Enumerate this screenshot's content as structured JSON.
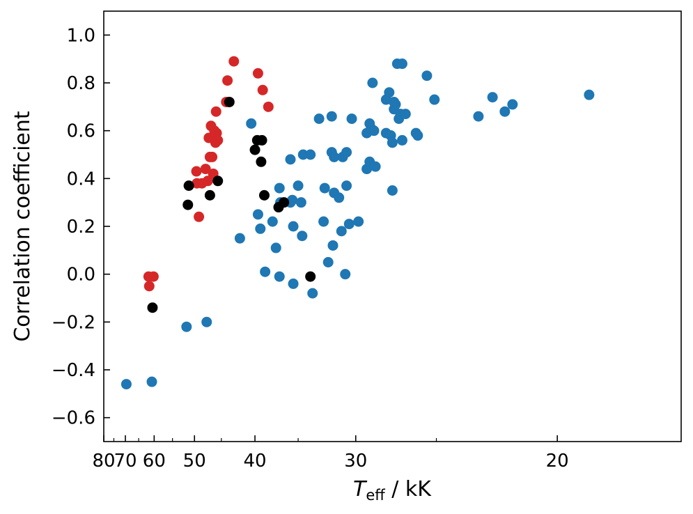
{
  "chart_data": {
    "type": "scatter",
    "title": "",
    "xlabel_symbol": "T",
    "xlabel_subscript": "eff",
    "xlabel_unit": "kK",
    "ylabel": "Correlation coefficient",
    "x_scale": "reciprocal",
    "xlim": [
      80,
      16.6
    ],
    "ylim": [
      -0.7,
      1.1
    ],
    "x_ticks": [
      80,
      70,
      60,
      50,
      40,
      30,
      20
    ],
    "x_tick_labels": [
      "80",
      "70",
      "60",
      "50",
      "40",
      "30",
      "20"
    ],
    "x_minor_ticks": [
      75,
      65,
      55,
      45,
      35,
      25
    ],
    "y_ticks": [
      -0.6,
      -0.4,
      -0.2,
      0.0,
      0.2,
      0.4,
      0.6,
      0.8,
      1.0
    ],
    "y_tick_labels": [
      "−0.6",
      "−0.4",
      "−0.2",
      "0.0",
      "0.2",
      "0.4",
      "0.6",
      "0.8",
      "1.0"
    ],
    "grid": false,
    "legend": "none",
    "series": [
      {
        "color": "#1f77b4",
        "points": [
          [
            69.6,
            -0.46
          ],
          [
            60.7,
            -0.45
          ],
          [
            51.7,
            -0.22
          ],
          [
            47.6,
            -0.2
          ],
          [
            42.1,
            0.15
          ],
          [
            40.5,
            0.63
          ],
          [
            39.6,
            0.25
          ],
          [
            39.3,
            0.19
          ],
          [
            38.7,
            0.01
          ],
          [
            37.8,
            0.22
          ],
          [
            37.4,
            0.11
          ],
          [
            37.0,
            0.36
          ],
          [
            37.0,
            -0.01
          ],
          [
            36.9,
            0.3
          ],
          [
            35.8,
            0.48
          ],
          [
            35.8,
            0.3
          ],
          [
            35.6,
            0.31
          ],
          [
            35.5,
            0.2
          ],
          [
            35.5,
            -0.04
          ],
          [
            35.0,
            0.37
          ],
          [
            34.7,
            0.3
          ],
          [
            34.6,
            0.16
          ],
          [
            34.5,
            0.5
          ],
          [
            33.8,
            0.5
          ],
          [
            33.6,
            -0.08
          ],
          [
            33.0,
            0.65
          ],
          [
            32.6,
            0.22
          ],
          [
            32.5,
            0.36
          ],
          [
            32.2,
            0.05
          ],
          [
            31.9,
            0.51
          ],
          [
            31.9,
            0.66
          ],
          [
            31.8,
            0.12
          ],
          [
            31.7,
            0.34
          ],
          [
            31.7,
            0.49
          ],
          [
            31.3,
            0.32
          ],
          [
            31.1,
            0.18
          ],
          [
            31.0,
            0.49
          ],
          [
            30.8,
            0.0
          ],
          [
            30.7,
            0.51
          ],
          [
            30.7,
            0.37
          ],
          [
            30.5,
            0.21
          ],
          [
            30.3,
            0.65
          ],
          [
            29.8,
            0.22
          ],
          [
            29.2,
            0.59
          ],
          [
            29.2,
            0.44
          ],
          [
            29.0,
            0.63
          ],
          [
            29.0,
            0.47
          ],
          [
            28.9,
            0.61
          ],
          [
            28.8,
            0.8
          ],
          [
            28.7,
            0.6
          ],
          [
            28.6,
            0.45
          ],
          [
            27.9,
            0.73
          ],
          [
            27.9,
            0.59
          ],
          [
            27.7,
            0.76
          ],
          [
            27.6,
            0.58
          ],
          [
            27.5,
            0.35
          ],
          [
            27.5,
            0.55
          ],
          [
            27.4,
            0.69
          ],
          [
            27.4,
            0.72
          ],
          [
            27.3,
            0.71
          ],
          [
            27.2,
            0.88
          ],
          [
            27.1,
            0.65
          ],
          [
            27.0,
            0.67
          ],
          [
            26.9,
            0.88
          ],
          [
            26.9,
            0.56
          ],
          [
            26.7,
            0.67
          ],
          [
            26.1,
            0.59
          ],
          [
            26.0,
            0.58
          ],
          [
            25.5,
            0.83
          ],
          [
            25.1,
            0.73
          ],
          [
            23.0,
            0.66
          ],
          [
            22.4,
            0.74
          ],
          [
            21.9,
            0.68
          ],
          [
            21.6,
            0.71
          ],
          [
            19.0,
            0.75
          ]
        ]
      },
      {
        "color": "#d62728",
        "points": [
          [
            61.7,
            -0.01
          ],
          [
            61.5,
            -0.05
          ],
          [
            60.2,
            -0.01
          ],
          [
            49.6,
            0.43
          ],
          [
            49.5,
            0.38
          ],
          [
            49.1,
            0.24
          ],
          [
            48.5,
            0.38
          ],
          [
            47.8,
            0.44
          ],
          [
            47.4,
            0.39
          ],
          [
            47.2,
            0.57
          ],
          [
            47.0,
            0.49
          ],
          [
            46.8,
            0.62
          ],
          [
            46.6,
            0.49
          ],
          [
            46.4,
            0.42
          ],
          [
            46.2,
            0.6
          ],
          [
            46.0,
            0.55
          ],
          [
            45.9,
            0.68
          ],
          [
            45.8,
            0.59
          ],
          [
            45.6,
            0.56
          ],
          [
            44.2,
            0.72
          ],
          [
            44.0,
            0.81
          ],
          [
            43.0,
            0.89
          ],
          [
            39.6,
            0.84
          ],
          [
            39.0,
            0.77
          ],
          [
            38.3,
            0.7
          ]
        ]
      },
      {
        "color": "#000000",
        "points": [
          [
            60.5,
            -0.14
          ],
          [
            51.4,
            0.29
          ],
          [
            51.2,
            0.37
          ],
          [
            47.0,
            0.33
          ],
          [
            45.6,
            0.39
          ],
          [
            43.7,
            0.72
          ],
          [
            40.0,
            0.52
          ],
          [
            39.7,
            0.56
          ],
          [
            39.2,
            0.47
          ],
          [
            39.1,
            0.56
          ],
          [
            38.8,
            0.33
          ],
          [
            37.1,
            0.28
          ],
          [
            36.5,
            0.3
          ],
          [
            33.8,
            -0.01
          ]
        ]
      }
    ]
  }
}
